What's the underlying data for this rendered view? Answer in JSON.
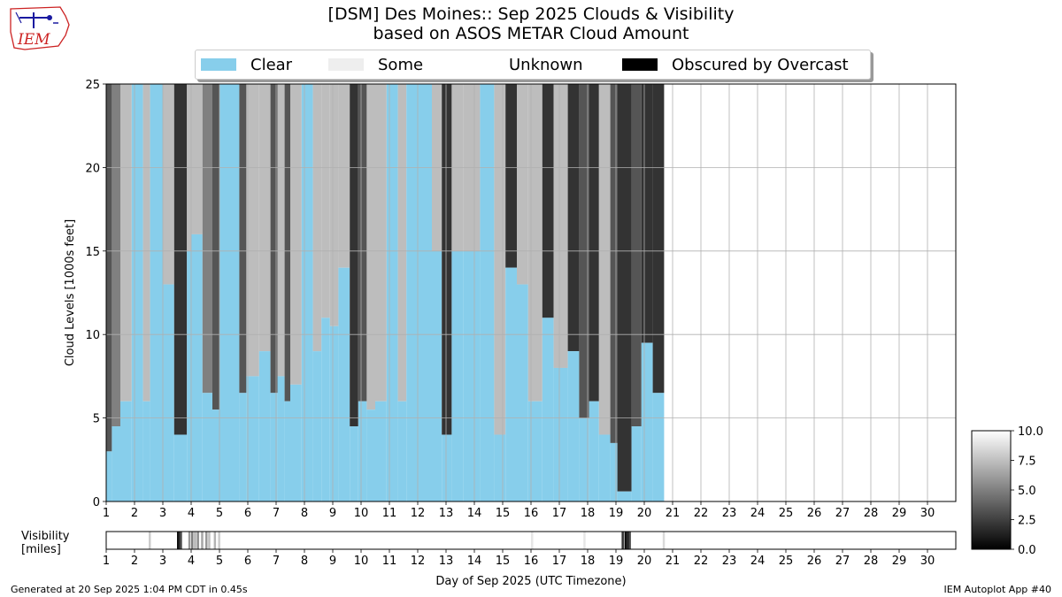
{
  "header": {
    "title_line1": "[DSM] Des Moines:: Sep 2025 Clouds & Visibility",
    "title_line2": "based on ASOS METAR Cloud Amount"
  },
  "logo": {
    "text": "IEM",
    "color": "#cc2222"
  },
  "legend": [
    {
      "label": "Clear",
      "color": "#87ceeb"
    },
    {
      "label": "Some",
      "color": "#eeeeee"
    },
    {
      "label": "Unknown",
      "color": "#ffffff"
    },
    {
      "label": "Obscured by Overcast",
      "color": "#000000"
    }
  ],
  "footer": {
    "left": "Generated at 20 Sep 2025 1:04 PM CDT in 0.45s",
    "right": "IEM Autoplot App #40"
  },
  "chart_data": [
    {
      "type": "heatmap",
      "title": "[DSM] Des Moines:: Sep 2025 Clouds & Visibility",
      "subtitle": "based on ASOS METAR Cloud Amount",
      "ylabel": "Cloud Levels [1000s feet]",
      "xlabel": "",
      "xlim": [
        1,
        31
      ],
      "ylim": [
        0,
        25
      ],
      "x_ticks": [
        "1",
        "2",
        "3",
        "4",
        "5",
        "6",
        "7",
        "8",
        "9",
        "10",
        "11",
        "12",
        "13",
        "14",
        "15",
        "16",
        "17",
        "18",
        "19",
        "20",
        "21",
        "22",
        "23",
        "24",
        "25",
        "26",
        "27",
        "28",
        "29",
        "30"
      ],
      "y_ticks": [
        "0",
        "5",
        "10",
        "15",
        "20",
        "25"
      ],
      "grid": true,
      "data_end_day": 20.7,
      "colors": {
        "clear": "#87ceeb",
        "few": "#bdbdbd",
        "scattered": "#808080",
        "broken": "#555555",
        "overcast": "#333333",
        "obscured": "#000000"
      },
      "clear_top_periods": [
        {
          "x0": 1.0,
          "x1": 1.2,
          "clear_top": 3.0,
          "cloud": "broken"
        },
        {
          "x0": 1.2,
          "x1": 1.5,
          "clear_top": 4.5,
          "cloud": "scattered"
        },
        {
          "x0": 1.5,
          "x1": 1.9,
          "clear_top": 6.0,
          "cloud": "few"
        },
        {
          "x0": 1.9,
          "x1": 2.3,
          "clear_top": 25,
          "cloud": "clear"
        },
        {
          "x0": 2.3,
          "x1": 2.55,
          "clear_top": 6.0,
          "cloud": "few"
        },
        {
          "x0": 2.55,
          "x1": 3.0,
          "clear_top": 25,
          "cloud": "clear"
        },
        {
          "x0": 3.0,
          "x1": 3.4,
          "clear_top": 13.0,
          "cloud": "few"
        },
        {
          "x0": 3.4,
          "x1": 3.85,
          "clear_top": 4.0,
          "cloud": "overcast"
        },
        {
          "x0": 3.85,
          "x1": 4.0,
          "clear_top": 15.0,
          "cloud": "few"
        },
        {
          "x0": 4.0,
          "x1": 4.4,
          "clear_top": 16.0,
          "cloud": "few"
        },
        {
          "x0": 4.4,
          "x1": 4.75,
          "clear_top": 6.5,
          "cloud": "scattered"
        },
        {
          "x0": 4.75,
          "x1": 5.0,
          "clear_top": 5.5,
          "cloud": "broken"
        },
        {
          "x0": 5.0,
          "x1": 5.7,
          "clear_top": 25,
          "cloud": "clear"
        },
        {
          "x0": 5.7,
          "x1": 5.95,
          "clear_top": 6.5,
          "cloud": "broken"
        },
        {
          "x0": 5.95,
          "x1": 6.4,
          "clear_top": 7.5,
          "cloud": "few"
        },
        {
          "x0": 6.4,
          "x1": 6.8,
          "clear_top": 9.0,
          "cloud": "few"
        },
        {
          "x0": 6.8,
          "x1": 7.05,
          "clear_top": 6.5,
          "cloud": "broken"
        },
        {
          "x0": 7.05,
          "x1": 7.3,
          "clear_top": 7.5,
          "cloud": "few"
        },
        {
          "x0": 7.3,
          "x1": 7.5,
          "clear_top": 6.0,
          "cloud": "broken"
        },
        {
          "x0": 7.5,
          "x1": 7.9,
          "clear_top": 7.0,
          "cloud": "few"
        },
        {
          "x0": 7.9,
          "x1": 8.3,
          "clear_top": 25,
          "cloud": "clear"
        },
        {
          "x0": 8.3,
          "x1": 8.6,
          "clear_top": 9.0,
          "cloud": "few"
        },
        {
          "x0": 8.6,
          "x1": 8.9,
          "clear_top": 11.0,
          "cloud": "few"
        },
        {
          "x0": 8.9,
          "x1": 9.2,
          "clear_top": 10.5,
          "cloud": "few"
        },
        {
          "x0": 9.2,
          "x1": 9.6,
          "clear_top": 14.0,
          "cloud": "few"
        },
        {
          "x0": 9.6,
          "x1": 9.9,
          "clear_top": 4.5,
          "cloud": "overcast"
        },
        {
          "x0": 9.9,
          "x1": 10.2,
          "clear_top": 6.0,
          "cloud": "broken"
        },
        {
          "x0": 10.2,
          "x1": 10.5,
          "clear_top": 5.5,
          "cloud": "few"
        },
        {
          "x0": 10.5,
          "x1": 10.9,
          "clear_top": 6.0,
          "cloud": "few"
        },
        {
          "x0": 10.9,
          "x1": 11.3,
          "clear_top": 25,
          "cloud": "clear"
        },
        {
          "x0": 11.3,
          "x1": 11.6,
          "clear_top": 6.0,
          "cloud": "few"
        },
        {
          "x0": 11.6,
          "x1": 12.5,
          "clear_top": 25,
          "cloud": "clear"
        },
        {
          "x0": 12.5,
          "x1": 12.85,
          "clear_top": 15.0,
          "cloud": "few"
        },
        {
          "x0": 12.85,
          "x1": 13.2,
          "clear_top": 4.0,
          "cloud": "overcast"
        },
        {
          "x0": 13.2,
          "x1": 13.6,
          "clear_top": 15.0,
          "cloud": "few"
        },
        {
          "x0": 13.6,
          "x1": 14.2,
          "clear_top": 15.0,
          "cloud": "few"
        },
        {
          "x0": 14.2,
          "x1": 14.7,
          "clear_top": 25,
          "cloud": "clear"
        },
        {
          "x0": 14.7,
          "x1": 15.1,
          "clear_top": 4.0,
          "cloud": "few"
        },
        {
          "x0": 15.1,
          "x1": 15.5,
          "clear_top": 14.0,
          "cloud": "overcast"
        },
        {
          "x0": 15.5,
          "x1": 15.9,
          "clear_top": 13.0,
          "cloud": "few"
        },
        {
          "x0": 15.9,
          "x1": 16.4,
          "clear_top": 6.0,
          "cloud": "few"
        },
        {
          "x0": 16.4,
          "x1": 16.8,
          "clear_top": 11.0,
          "cloud": "overcast"
        },
        {
          "x0": 16.8,
          "x1": 17.3,
          "clear_top": 8.0,
          "cloud": "few"
        },
        {
          "x0": 17.3,
          "x1": 17.7,
          "clear_top": 9.0,
          "cloud": "overcast"
        },
        {
          "x0": 17.7,
          "x1": 18.05,
          "clear_top": 5.0,
          "cloud": "broken"
        },
        {
          "x0": 18.05,
          "x1": 18.4,
          "clear_top": 6.0,
          "cloud": "overcast"
        },
        {
          "x0": 18.4,
          "x1": 18.8,
          "clear_top": 4.0,
          "cloud": "few"
        },
        {
          "x0": 18.8,
          "x1": 19.05,
          "clear_top": 3.5,
          "cloud": "broken"
        },
        {
          "x0": 19.05,
          "x1": 19.55,
          "clear_top": 0.6,
          "cloud": "overcast"
        },
        {
          "x0": 19.55,
          "x1": 19.9,
          "clear_top": 4.5,
          "cloud": "broken"
        },
        {
          "x0": 19.9,
          "x1": 20.3,
          "clear_top": 9.5,
          "cloud": "overcast"
        },
        {
          "x0": 20.3,
          "x1": 20.7,
          "clear_top": 6.5,
          "cloud": "overcast"
        }
      ]
    },
    {
      "type": "heatmap",
      "ylabel": "Visibility\n[miles]",
      "ylabel_lines": [
        "Visibility",
        "[miles]"
      ],
      "xlabel": "Day of Sep 2025 (UTC Timezone)",
      "xlim": [
        1,
        31
      ],
      "colorbar": {
        "min": 0.0,
        "max": 10.0,
        "ticks": [
          "0.0",
          "2.5",
          "5.0",
          "7.5",
          "10.0"
        ]
      },
      "x_ticks": [
        "1",
        "2",
        "3",
        "4",
        "5",
        "6",
        "7",
        "8",
        "9",
        "10",
        "11",
        "12",
        "13",
        "14",
        "15",
        "16",
        "17",
        "18",
        "19",
        "20",
        "21",
        "22",
        "23",
        "24",
        "25",
        "26",
        "27",
        "28",
        "29",
        "30"
      ],
      "visibility": [
        {
          "x": 2.5,
          "v": 8.0
        },
        {
          "x": 3.5,
          "v": 0.5
        },
        {
          "x": 3.55,
          "v": 1.5
        },
        {
          "x": 3.6,
          "v": 3.0
        },
        {
          "x": 3.9,
          "v": 6.0
        },
        {
          "x": 4.0,
          "v": 5.0
        },
        {
          "x": 4.1,
          "v": 7.0
        },
        {
          "x": 4.2,
          "v": 5.5
        },
        {
          "x": 4.35,
          "v": 6.5
        },
        {
          "x": 4.5,
          "v": 6.0
        },
        {
          "x": 4.6,
          "v": 7.5
        },
        {
          "x": 4.8,
          "v": 7.0
        },
        {
          "x": 4.95,
          "v": 8.0
        },
        {
          "x": 16.0,
          "v": 9.0
        },
        {
          "x": 17.85,
          "v": 9.0
        },
        {
          "x": 19.2,
          "v": 2.0
        },
        {
          "x": 19.3,
          "v": 0.5
        },
        {
          "x": 19.38,
          "v": 1.0
        },
        {
          "x": 19.45,
          "v": 3.0
        },
        {
          "x": 20.65,
          "v": 8.5
        }
      ]
    }
  ]
}
